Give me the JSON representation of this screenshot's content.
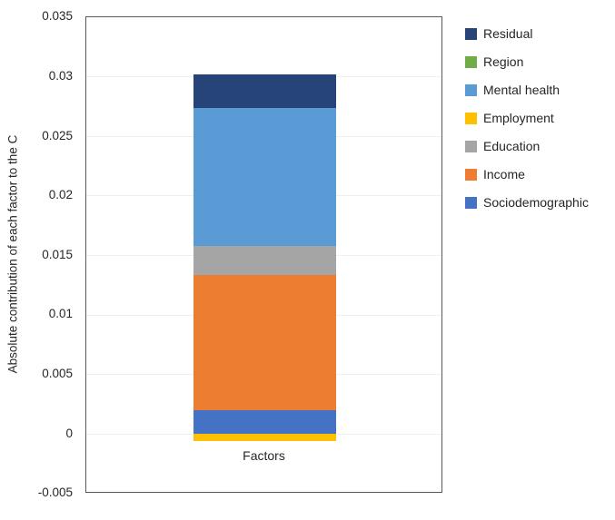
{
  "chart_data": {
    "type": "bar",
    "stacked": true,
    "title": "",
    "categories": [
      "Factors"
    ],
    "series": [
      {
        "name": "Sociodemographic",
        "values": [
          0.002
        ],
        "color": "#4472C4"
      },
      {
        "name": "Income",
        "values": [
          0.0114
        ],
        "color": "#ED7D31"
      },
      {
        "name": "Education",
        "values": [
          0.0024
        ],
        "color": "#A5A5A5"
      },
      {
        "name": "Employment",
        "values": [
          -0.0006
        ],
        "color": "#FFC000"
      },
      {
        "name": "Mental health",
        "values": [
          0.0116
        ],
        "color": "#5B9BD5"
      },
      {
        "name": "Region",
        "values": [
          0.0
        ],
        "color": "#70AD47"
      },
      {
        "name": "Residual",
        "values": [
          0.0028
        ],
        "color": "#264478"
      }
    ],
    "bar_total_positive": 0.0302,
    "xlabel": "",
    "ylabel": "Absolute contribution of each factor to the C",
    "ylim": [
      -0.005,
      0.035
    ],
    "ytick_step": 0.005,
    "yticks": [
      "0.035",
      "0.03",
      "0.025",
      "0.02",
      "0.015",
      "0.01",
      "0.005",
      "0",
      "-0.005"
    ],
    "grid": true,
    "legend_position": "right",
    "legend_order": [
      "Residual",
      "Region",
      "Mental health",
      "Employment",
      "Education",
      "Income",
      "Sociodemographic"
    ]
  }
}
